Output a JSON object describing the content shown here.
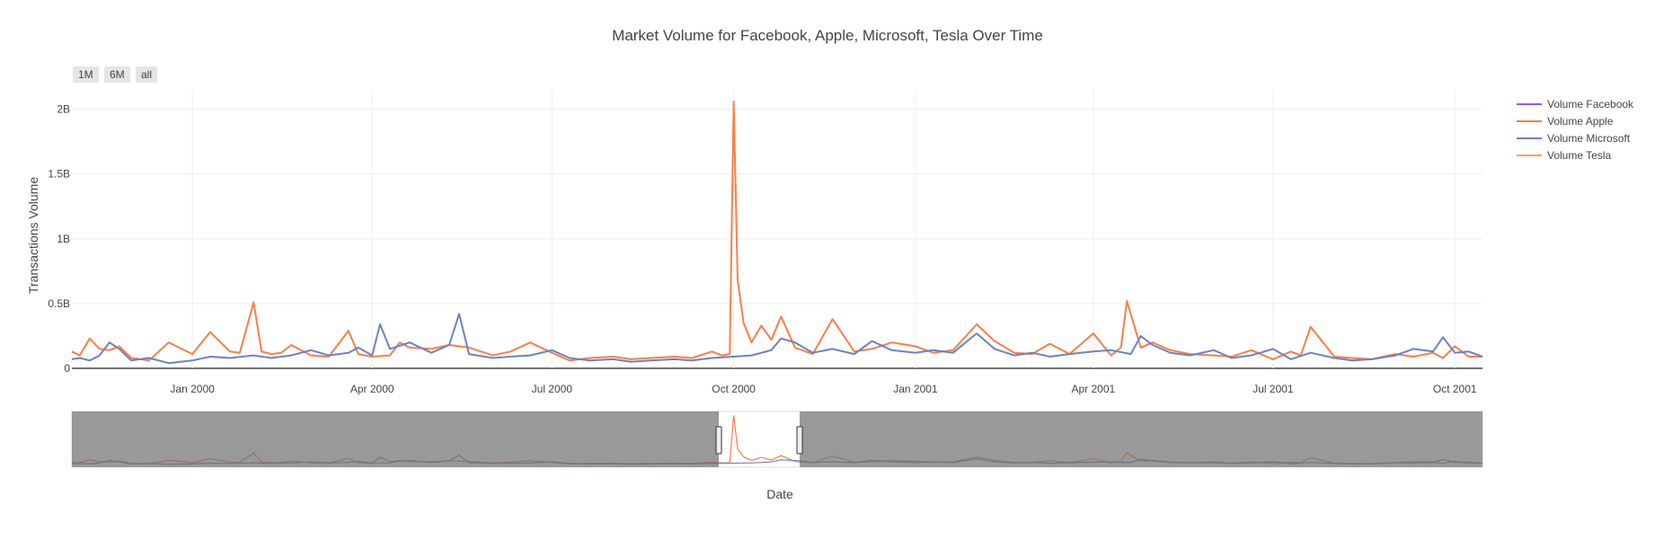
{
  "chart_data": {
    "type": "line",
    "title": "Market Volume for Facebook, Apple, Microsoft, Tesla Over Time",
    "xlabel": "Date",
    "ylabel": "Transactions Volume",
    "x_range": [
      "1999-11-01",
      "2001-10-15"
    ],
    "ylim": [
      0,
      2150000000
    ],
    "y_ticks": [
      0,
      500000000,
      1000000000,
      1500000000,
      2000000000
    ],
    "y_tick_labels": [
      "0",
      "0.5B",
      "1B",
      "1.5B",
      "2B"
    ],
    "x_ticks": [
      "2000-01-01",
      "2000-04-01",
      "2000-07-01",
      "2000-10-01",
      "2001-01-01",
      "2001-04-01",
      "2001-07-01",
      "2001-10-01"
    ],
    "x_tick_labels": [
      "Jan 2000",
      "Apr 2000",
      "Jul 2000",
      "Oct 2000",
      "Jan 2001",
      "Apr 2001",
      "Jul 2001",
      "Oct 2001"
    ],
    "grid": true,
    "legend_position": "top-right",
    "range_selector": [
      "1M",
      "6M",
      "all"
    ],
    "range_slider": true,
    "series": [
      {
        "name": "Volume Facebook",
        "color": "#a259d8",
        "x": [],
        "values": []
      },
      {
        "name": "Volume Apple",
        "color": "#f87f48",
        "x": [
          "1999-11-01",
          "1999-11-05",
          "1999-11-10",
          "1999-11-15",
          "1999-11-20",
          "1999-11-25",
          "1999-12-01",
          "1999-12-10",
          "1999-12-20",
          "2000-01-01",
          "2000-01-10",
          "2000-01-20",
          "2000-01-25",
          "2000-02-01",
          "2000-02-05",
          "2000-02-10",
          "2000-02-15",
          "2000-02-20",
          "2000-03-01",
          "2000-03-10",
          "2000-03-20",
          "2000-03-25",
          "2000-04-01",
          "2000-04-10",
          "2000-04-15",
          "2000-04-20",
          "2000-05-01",
          "2000-05-10",
          "2000-05-20",
          "2000-06-01",
          "2000-06-10",
          "2000-06-20",
          "2000-07-01",
          "2000-07-10",
          "2000-07-20",
          "2000-08-01",
          "2000-08-10",
          "2000-08-20",
          "2000-09-01",
          "2000-09-10",
          "2000-09-20",
          "2000-09-25",
          "2000-09-29",
          "2000-10-01",
          "2000-10-03",
          "2000-10-06",
          "2000-10-10",
          "2000-10-15",
          "2000-10-20",
          "2000-10-25",
          "2000-11-01",
          "2000-11-10",
          "2000-11-20",
          "2000-12-01",
          "2000-12-10",
          "2000-12-20",
          "2001-01-01",
          "2001-01-10",
          "2001-01-20",
          "2001-02-01",
          "2001-02-10",
          "2001-02-20",
          "2001-03-01",
          "2001-03-10",
          "2001-03-20",
          "2001-04-01",
          "2001-04-10",
          "2001-04-15",
          "2001-04-18",
          "2001-04-25",
          "2001-05-01",
          "2001-05-10",
          "2001-05-20",
          "2001-06-01",
          "2001-06-10",
          "2001-06-20",
          "2001-07-01",
          "2001-07-10",
          "2001-07-15",
          "2001-07-20",
          "2001-08-01",
          "2001-08-10",
          "2001-08-20",
          "2001-09-01",
          "2001-09-10",
          "2001-09-20",
          "2001-09-25",
          "2001-10-01",
          "2001-10-08",
          "2001-10-15"
        ],
        "values": [
          130000000,
          100000000,
          230000000,
          150000000,
          140000000,
          170000000,
          80000000,
          60000000,
          200000000,
          110000000,
          280000000,
          130000000,
          120000000,
          510000000,
          130000000,
          110000000,
          120000000,
          180000000,
          100000000,
          90000000,
          290000000,
          110000000,
          90000000,
          100000000,
          200000000,
          160000000,
          150000000,
          180000000,
          160000000,
          100000000,
          130000000,
          200000000,
          120000000,
          60000000,
          80000000,
          90000000,
          70000000,
          80000000,
          90000000,
          80000000,
          130000000,
          100000000,
          110000000,
          2060000000,
          680000000,
          350000000,
          200000000,
          330000000,
          220000000,
          400000000,
          160000000,
          110000000,
          380000000,
          130000000,
          150000000,
          200000000,
          170000000,
          120000000,
          140000000,
          340000000,
          210000000,
          120000000,
          110000000,
          190000000,
          110000000,
          270000000,
          100000000,
          160000000,
          520000000,
          160000000,
          200000000,
          140000000,
          110000000,
          100000000,
          90000000,
          140000000,
          70000000,
          130000000,
          100000000,
          320000000,
          90000000,
          80000000,
          70000000,
          110000000,
          90000000,
          120000000,
          80000000,
          170000000,
          90000000,
          90000000
        ]
      },
      {
        "name": "Volume Microsoft",
        "color": "#6b82c4",
        "x": [
          "1999-11-01",
          "1999-11-05",
          "1999-11-10",
          "1999-11-15",
          "1999-11-20",
          "1999-11-25",
          "1999-12-01",
          "1999-12-10",
          "1999-12-20",
          "2000-01-01",
          "2000-01-10",
          "2000-01-20",
          "2000-02-01",
          "2000-02-10",
          "2000-02-20",
          "2000-03-01",
          "2000-03-10",
          "2000-03-20",
          "2000-03-25",
          "2000-04-01",
          "2000-04-05",
          "2000-04-10",
          "2000-04-20",
          "2000-05-01",
          "2000-05-10",
          "2000-05-15",
          "2000-05-20",
          "2000-06-01",
          "2000-06-10",
          "2000-06-20",
          "2000-07-01",
          "2000-07-10",
          "2000-07-20",
          "2000-08-01",
          "2000-08-10",
          "2000-08-20",
          "2000-09-01",
          "2000-09-10",
          "2000-09-20",
          "2000-10-01",
          "2000-10-10",
          "2000-10-20",
          "2000-10-25",
          "2000-11-01",
          "2000-11-10",
          "2000-11-20",
          "2000-12-01",
          "2000-12-10",
          "2000-12-20",
          "2001-01-01",
          "2001-01-10",
          "2001-01-20",
          "2001-02-01",
          "2001-02-10",
          "2001-02-20",
          "2001-03-01",
          "2001-03-10",
          "2001-03-20",
          "2001-04-01",
          "2001-04-10",
          "2001-04-20",
          "2001-04-25",
          "2001-05-01",
          "2001-05-10",
          "2001-05-20",
          "2001-06-01",
          "2001-06-10",
          "2001-06-20",
          "2001-07-01",
          "2001-07-10",
          "2001-07-20",
          "2001-08-01",
          "2001-08-10",
          "2001-08-20",
          "2001-09-01",
          "2001-09-10",
          "2001-09-20",
          "2001-09-25",
          "2001-10-01",
          "2001-10-08",
          "2001-10-15"
        ],
        "values": [
          70000000,
          80000000,
          60000000,
          100000000,
          200000000,
          150000000,
          60000000,
          80000000,
          40000000,
          60000000,
          90000000,
          80000000,
          100000000,
          80000000,
          100000000,
          140000000,
          100000000,
          120000000,
          160000000,
          100000000,
          340000000,
          150000000,
          200000000,
          120000000,
          180000000,
          420000000,
          110000000,
          80000000,
          90000000,
          100000000,
          140000000,
          80000000,
          60000000,
          70000000,
          50000000,
          60000000,
          70000000,
          60000000,
          80000000,
          90000000,
          100000000,
          140000000,
          230000000,
          200000000,
          120000000,
          150000000,
          110000000,
          210000000,
          140000000,
          120000000,
          140000000,
          120000000,
          270000000,
          150000000,
          100000000,
          120000000,
          90000000,
          110000000,
          130000000,
          140000000,
          110000000,
          250000000,
          180000000,
          120000000,
          100000000,
          140000000,
          80000000,
          100000000,
          150000000,
          70000000,
          120000000,
          80000000,
          60000000,
          70000000,
          100000000,
          150000000,
          130000000,
          240000000,
          120000000,
          130000000,
          90000000
        ]
      },
      {
        "name": "Volume Tesla",
        "color": "#f6a35c",
        "x": [],
        "values": []
      }
    ]
  }
}
